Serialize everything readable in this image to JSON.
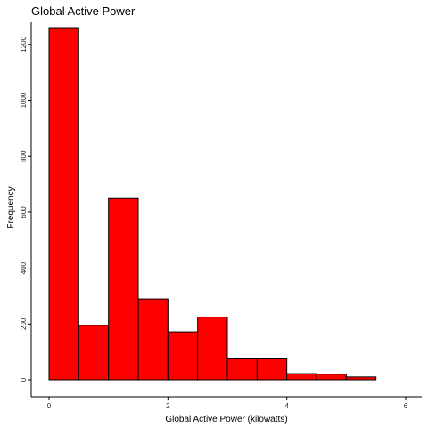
{
  "chart_data": {
    "type": "bar",
    "title": "Global Active Power",
    "xlabel": "Global Active Power (kilowatts)",
    "ylabel": "Frequency",
    "bin_edges": [
      0,
      0.5,
      1,
      1.5,
      2,
      2.5,
      3,
      3.5,
      4,
      4.5,
      5,
      5.5,
      6
    ],
    "values": [
      1260,
      195,
      650,
      290,
      172,
      225,
      75,
      75,
      22,
      20,
      10,
      0
    ],
    "xlim": [
      0,
      6
    ],
    "ylim": [
      0,
      1260
    ],
    "x_ticks": [
      0,
      2,
      4,
      6
    ],
    "y_ticks": [
      0,
      200,
      400,
      600,
      800,
      1000,
      1200
    ],
    "bar_color": "#ff0000",
    "grid": false,
    "legend": "none"
  }
}
